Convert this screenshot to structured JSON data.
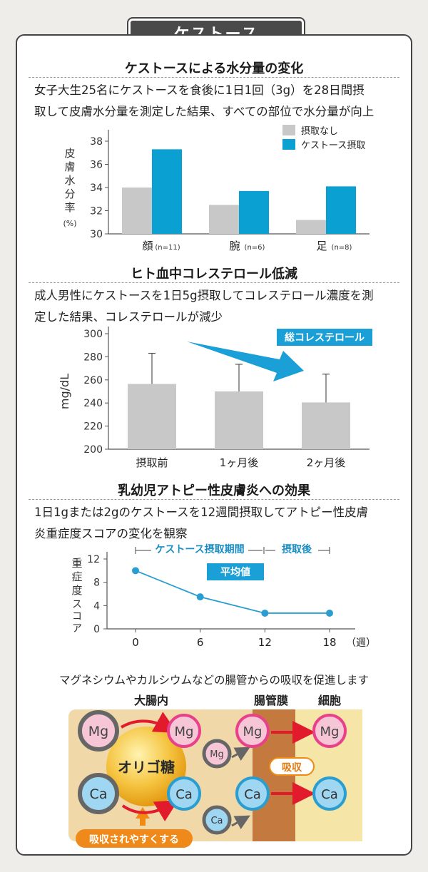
{
  "page": {
    "title": "ケストース"
  },
  "sections": {
    "moisture": {
      "title": "ケストースによる水分量の変化",
      "desc_line1": "女子大生25名にケストースを食後に1日1回（3g）を28日間摂",
      "desc_line2": "取して皮膚水分量を測定した結果、すべての部位で水分量が向上"
    },
    "cholesterol": {
      "title": "ヒト血中コレステロール低減",
      "desc_line1": "成人男性にケストースを1日5g摂取してコレステロール濃度を測",
      "desc_line2": "定した結果、コレステロールが減少",
      "badge": "総コレステロール"
    },
    "atopy": {
      "title": "乳幼児アトピー性皮膚炎への効果",
      "desc_line1": "1日1gまたは2gのケストースを12週間摂取してアトピー性皮膚",
      "desc_line2": "炎重症度スコアの変化を観察",
      "period_intake": "ケストース摂取期間",
      "period_after": "摂取後",
      "badge": "平均値"
    },
    "absorption": {
      "caption": "マグネシウムやカルシウムなどの腸管からの吸収を促進します",
      "col_intestine": "大腸内",
      "col_membrane": "腸管膜",
      "col_cell": "細胞",
      "oligo": "オリゴ糖",
      "absorb": "吸収",
      "easier": "吸収されやすくする",
      "mg": "Mg",
      "ca": "Ca"
    }
  },
  "chart_data": [
    {
      "type": "bar",
      "ylabel": "皮膚水分率(%)",
      "ylim": [
        30,
        38
      ],
      "yticks": [
        30,
        32,
        34,
        36,
        38
      ],
      "categories": [
        "顔",
        "腕",
        "足"
      ],
      "category_notes": [
        "(n=11)",
        "(n=6)",
        "(n=8)"
      ],
      "series": [
        {
          "name": "摂取なし",
          "color": "#c8c8c8",
          "values": [
            34.0,
            32.5,
            31.2
          ]
        },
        {
          "name": "ケストース摂取",
          "color": "#0aa0d2",
          "values": [
            37.3,
            33.7,
            34.1
          ]
        }
      ],
      "legend": "top-right"
    },
    {
      "type": "bar",
      "ylabel": "mg/dL",
      "ylim": [
        200,
        300
      ],
      "yticks": [
        200,
        220,
        240,
        260,
        280,
        300
      ],
      "categories": [
        "摂取前",
        "1ヶ月後",
        "2ヶ月後"
      ],
      "values": [
        256.5,
        250,
        240.5
      ],
      "error_upper": [
        283,
        273.5,
        265
      ],
      "color": "#c8c8c8"
    },
    {
      "type": "line",
      "ylabel": "重症度スコア",
      "ylim": [
        0,
        12
      ],
      "yticks": [
        0,
        4,
        8,
        12
      ],
      "x": [
        0,
        6,
        12,
        18
      ],
      "x_unit": "（週）",
      "values": [
        10,
        5.5,
        2.7,
        2.7
      ],
      "color": "#2a9ed0"
    }
  ]
}
